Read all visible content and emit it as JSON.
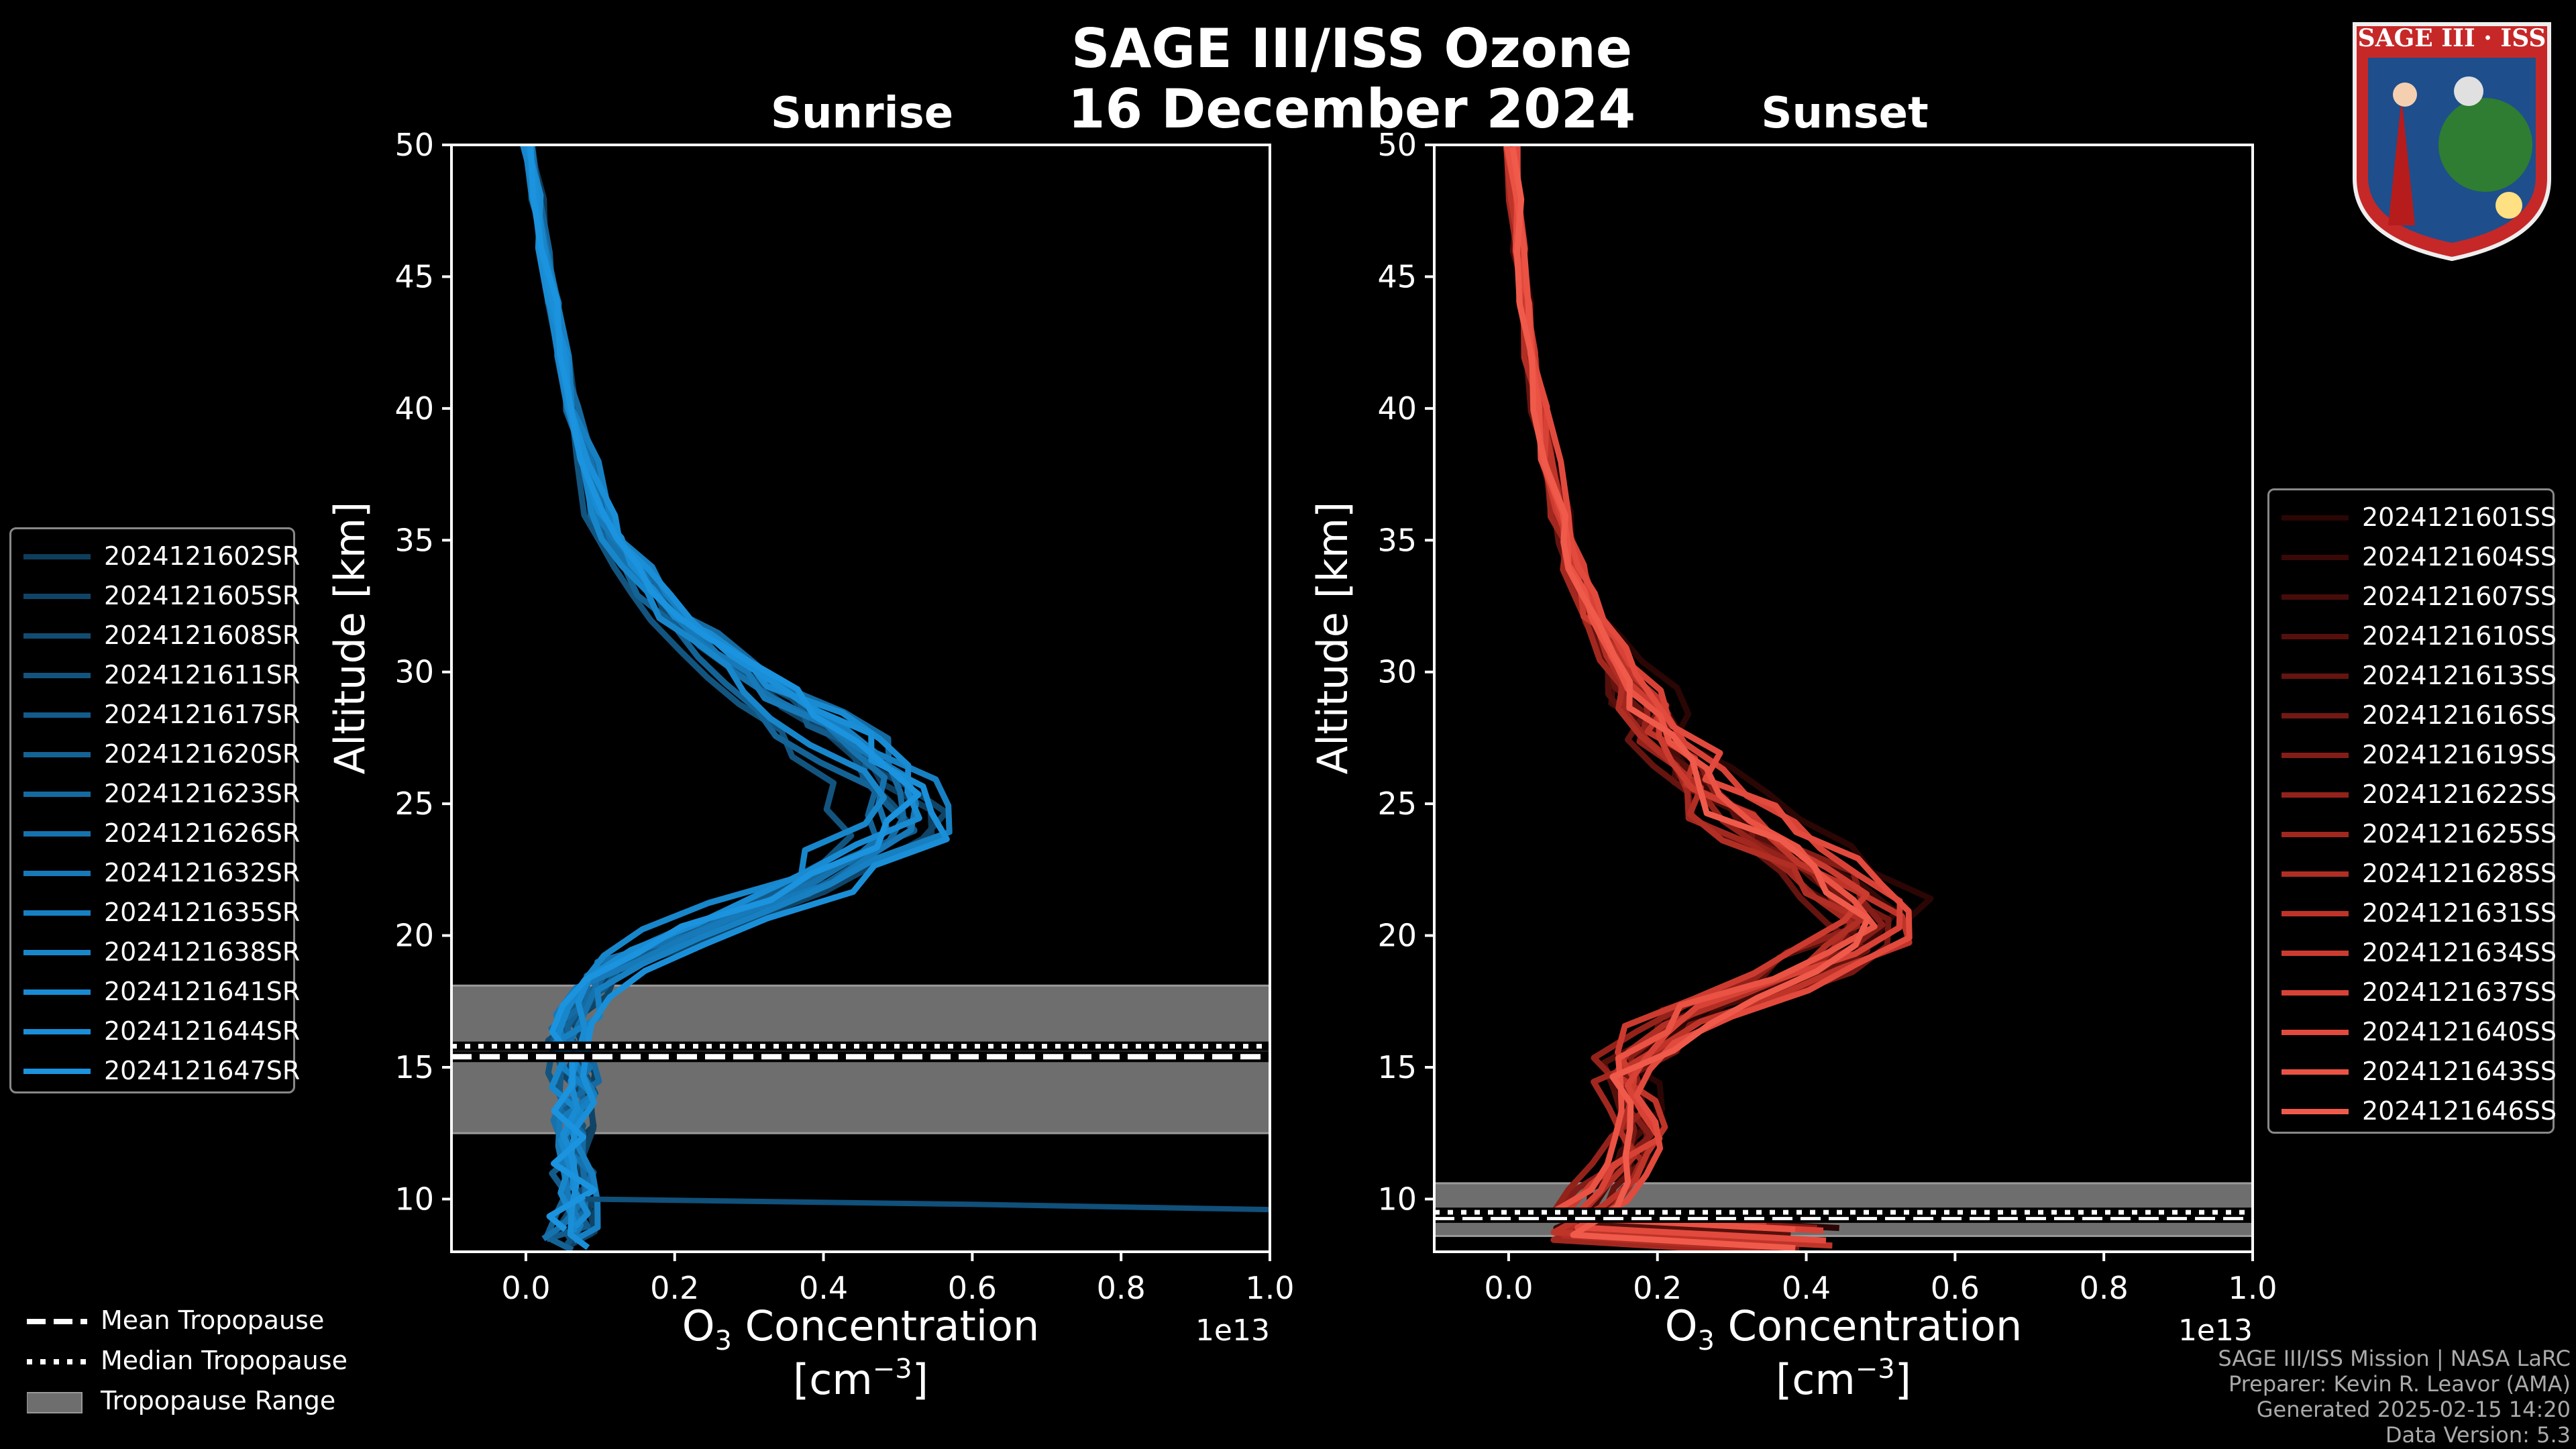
{
  "title": {
    "line1": "SAGE III/ISS Ozone",
    "line2": "16 December 2024"
  },
  "logo": {
    "text": "SAGE III · ISS"
  },
  "credits": [
    "SAGE III/ISS Mission | NASA LaRC",
    "Preparer: Kevin R. Leavor (AMA)",
    "Generated 2025-02-15 14:20",
    "Data Version: 5.3"
  ],
  "tropopause_legend": [
    {
      "label": "Mean Tropopause",
      "style": "dashed"
    },
    {
      "label": "Median Tropopause",
      "style": "dotted"
    },
    {
      "label": "Tropopause Range",
      "style": "patch"
    }
  ],
  "chart_data": [
    {
      "type": "line",
      "title": "Sunrise",
      "xlabel": "O3 Concentration",
      "xlabel_units": "[cm^-3]",
      "x_scale_label": "1e13",
      "ylabel": "Altitude [km]",
      "xlim": [
        -0.1,
        1.0
      ],
      "ylim": [
        8,
        50
      ],
      "xticks": [
        "0.0",
        "0.2",
        "0.4",
        "0.6",
        "0.8",
        "1.0"
      ],
      "yticks": [
        "10",
        "15",
        "20",
        "25",
        "30",
        "35",
        "40",
        "45",
        "50"
      ],
      "color_base": "#1a8fd6",
      "tropopause": {
        "mean": 15.4,
        "median": 15.8,
        "range": [
          12.5,
          18.1
        ]
      },
      "series": [
        {
          "name": "2024121602SR",
          "color": "#0f3d5c"
        },
        {
          "name": "2024121605SR",
          "color": "#104466"
        },
        {
          "name": "2024121608SR",
          "color": "#114c72"
        },
        {
          "name": "2024121611SR",
          "color": "#12547e"
        },
        {
          "name": "2024121617SR",
          "color": "#135b8a"
        },
        {
          "name": "2024121620SR",
          "color": "#146396"
        },
        {
          "name": "2024121623SR",
          "color": "#156aa1"
        },
        {
          "name": "2024121626SR",
          "color": "#1672ad"
        },
        {
          "name": "2024121632SR",
          "color": "#1779b8"
        },
        {
          "name": "2024121635SR",
          "color": "#1780c2"
        },
        {
          "name": "2024121638SR",
          "color": "#1886cb"
        },
        {
          "name": "2024121641SR",
          "color": "#198bd2"
        },
        {
          "name": "2024121644SR",
          "color": "#1a8fd8"
        },
        {
          "name": "2024121647SR",
          "color": "#1b93de"
        }
      ],
      "base_profile": {
        "alt": [
          8.5,
          9,
          10,
          11,
          12,
          13,
          14,
          15,
          16,
          17,
          18,
          19,
          20,
          21,
          22,
          23,
          24,
          25,
          26,
          27,
          28,
          29,
          30,
          31,
          32,
          33,
          34,
          35,
          36,
          38,
          40,
          42,
          44,
          46,
          48,
          50
        ],
        "o3": [
          0.05,
          0.06,
          0.07,
          0.065,
          0.07,
          0.065,
          0.07,
          0.07,
          0.06,
          0.07,
          0.09,
          0.12,
          0.2,
          0.3,
          0.38,
          0.44,
          0.5,
          0.5,
          0.48,
          0.44,
          0.39,
          0.34,
          0.29,
          0.24,
          0.2,
          0.17,
          0.145,
          0.12,
          0.1,
          0.08,
          0.062,
          0.048,
          0.035,
          0.025,
          0.015,
          0.005
        ]
      },
      "outlier": {
        "alt": [
          9.6,
          9.8,
          10.0
        ],
        "o3": [
          1.0,
          0.6,
          0.08
        ]
      }
    },
    {
      "type": "line",
      "title": "Sunset",
      "xlabel": "O3 Concentration",
      "xlabel_units": "[cm^-3]",
      "x_scale_label": "1e13",
      "ylabel": "Altitude [km]",
      "xlim": [
        -0.1,
        1.0
      ],
      "ylim": [
        8,
        50
      ],
      "xticks": [
        "0.0",
        "0.2",
        "0.4",
        "0.6",
        "0.8",
        "1.0"
      ],
      "yticks": [
        "10",
        "15",
        "20",
        "25",
        "30",
        "35",
        "40",
        "45",
        "50"
      ],
      "color_base": "#f05a48",
      "tropopause": {
        "mean": 9.3,
        "median": 9.5,
        "range": [
          8.6,
          10.6
        ]
      },
      "series": [
        {
          "name": "2024121601SS",
          "color": "#2a0604"
        },
        {
          "name": "2024121604SS",
          "color": "#380906"
        },
        {
          "name": "2024121607SS",
          "color": "#470c09"
        },
        {
          "name": "2024121610SS",
          "color": "#56100c"
        },
        {
          "name": "2024121613SS",
          "color": "#65140f"
        },
        {
          "name": "2024121616SS",
          "color": "#741813"
        },
        {
          "name": "2024121619SS",
          "color": "#841d17"
        },
        {
          "name": "2024121622SS",
          "color": "#93221b"
        },
        {
          "name": "2024121625SS",
          "color": "#a2281f"
        },
        {
          "name": "2024121628SS",
          "color": "#b12e24"
        },
        {
          "name": "2024121631SS",
          "color": "#bf3429"
        },
        {
          "name": "2024121634SS",
          "color": "#cc3b2f"
        },
        {
          "name": "2024121637SS",
          "color": "#d84236"
        },
        {
          "name": "2024121640SS",
          "color": "#e24a3d"
        },
        {
          "name": "2024121643SS",
          "color": "#ea5244"
        },
        {
          "name": "2024121646SS",
          "color": "#f05a4b"
        }
      ],
      "base_profile": {
        "alt": [
          8.5,
          9,
          10,
          11,
          12,
          13,
          14,
          15,
          16,
          17,
          18,
          19,
          20,
          21,
          22,
          23,
          24,
          25,
          26,
          27,
          28,
          29,
          30,
          31,
          32,
          33,
          34,
          35,
          36,
          38,
          40,
          42,
          44,
          46,
          48,
          50
        ],
        "o3": [
          0.4,
          0.08,
          0.12,
          0.16,
          0.17,
          0.18,
          0.17,
          0.15,
          0.2,
          0.26,
          0.35,
          0.43,
          0.5,
          0.5,
          0.46,
          0.4,
          0.35,
          0.3,
          0.26,
          0.23,
          0.2,
          0.18,
          0.16,
          0.14,
          0.12,
          0.105,
          0.09,
          0.08,
          0.07,
          0.055,
          0.042,
          0.032,
          0.022,
          0.015,
          0.01,
          0.005
        ]
      }
    }
  ]
}
